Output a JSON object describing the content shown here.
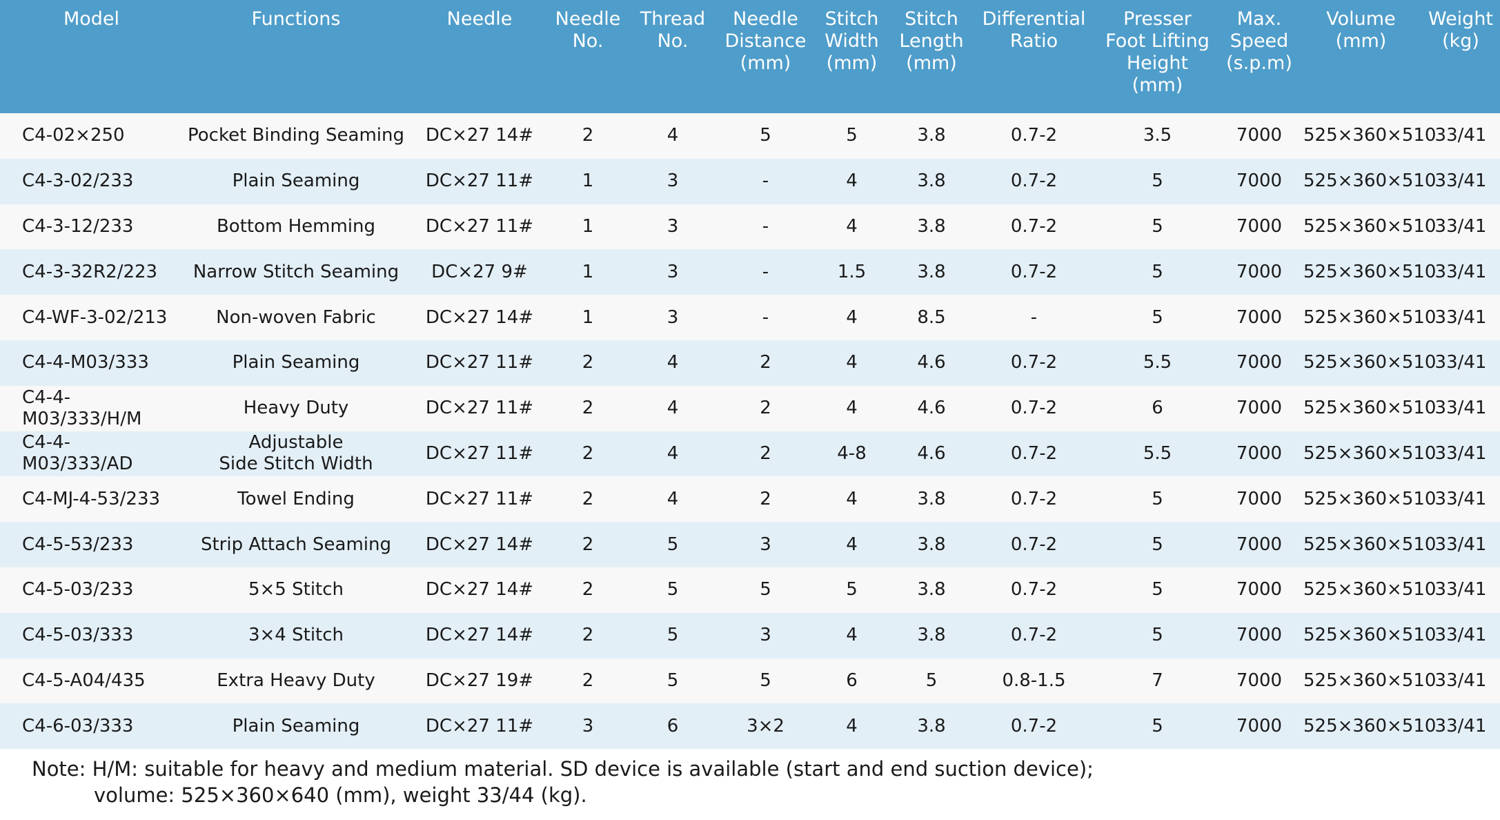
{
  "table": {
    "headers": [
      "Model",
      "Functions",
      "Needle",
      "Needle\nNo.",
      "Thread\nNo.",
      "Needle\nDistance\n(mm)",
      "Stitch\nWidth\n(mm)",
      "Stitch\nLength\n(mm)",
      "Differential\nRatio",
      "Presser\nFoot Lifting\nHeight\n(mm)",
      "Max.\nSpeed\n(s.p.m)",
      "Volume\n(mm)",
      "Weight\n(kg)"
    ],
    "rows": [
      [
        "C4-02×250",
        "Pocket Binding Seaming",
        "DC×27 14#",
        "2",
        "4",
        "5",
        "5",
        "3.8",
        "0.7-2",
        "3.5",
        "7000",
        "525×360×510",
        "33/41"
      ],
      [
        "C4-3-02/233",
        "Plain Seaming",
        "DC×27 11#",
        "1",
        "3",
        "-",
        "4",
        "3.8",
        "0.7-2",
        "5",
        "7000",
        "525×360×510",
        "33/41"
      ],
      [
        "C4-3-12/233",
        "Bottom Hemming",
        "DC×27 11#",
        "1",
        "3",
        "-",
        "4",
        "3.8",
        "0.7-2",
        "5",
        "7000",
        "525×360×510",
        "33/41"
      ],
      [
        "C4-3-32R2/223",
        "Narrow Stitch Seaming",
        "DC×27 9#",
        "1",
        "3",
        "-",
        "1.5",
        "3.8",
        "0.7-2",
        "5",
        "7000",
        "525×360×510",
        "33/41"
      ],
      [
        "C4-WF-3-02/213",
        "Non-woven Fabric",
        "DC×27 14#",
        "1",
        "3",
        "-",
        "4",
        "8.5",
        "-",
        "5",
        "7000",
        "525×360×510",
        "33/41"
      ],
      [
        "C4-4-M03/333",
        "Plain Seaming",
        "DC×27 11#",
        "2",
        "4",
        "2",
        "4",
        "4.6",
        "0.7-2",
        "5.5",
        "7000",
        "525×360×510",
        "33/41"
      ],
      [
        "C4-4-M03/333/H/M",
        "Heavy Duty",
        "DC×27 11#",
        "2",
        "4",
        "2",
        "4",
        "4.6",
        "0.7-2",
        "6",
        "7000",
        "525×360×510",
        "33/41"
      ],
      [
        "C4-4-M03/333/AD",
        "Adjustable\nSide Stitch Width",
        "DC×27 11#",
        "2",
        "4",
        "2",
        "4-8",
        "4.6",
        "0.7-2",
        "5.5",
        "7000",
        "525×360×510",
        "33/41"
      ],
      [
        "C4-MJ-4-53/233",
        "Towel Ending",
        "DC×27 11#",
        "2",
        "4",
        "2",
        "4",
        "3.8",
        "0.7-2",
        "5",
        "7000",
        "525×360×510",
        "33/41"
      ],
      [
        "C4-5-53/233",
        "Strip Attach Seaming",
        "DC×27 14#",
        "2",
        "5",
        "3",
        "4",
        "3.8",
        "0.7-2",
        "5",
        "7000",
        "525×360×510",
        "33/41"
      ],
      [
        "C4-5-03/233",
        "5×5 Stitch",
        "DC×27 14#",
        "2",
        "5",
        "5",
        "5",
        "3.8",
        "0.7-2",
        "5",
        "7000",
        "525×360×510",
        "33/41"
      ],
      [
        "C4-5-03/333",
        "3×4 Stitch",
        "DC×27 14#",
        "2",
        "5",
        "3",
        "4",
        "3.8",
        "0.7-2",
        "5",
        "7000",
        "525×360×510",
        "33/41"
      ],
      [
        "C4-5-A04/435",
        "Extra Heavy Duty",
        "DC×27 19#",
        "2",
        "5",
        "5",
        "6",
        "5",
        "0.8-1.5",
        "7",
        "7000",
        "525×360×510",
        "33/41"
      ],
      [
        "C4-6-03/333",
        "Plain Seaming",
        "DC×27 11#",
        "3",
        "6",
        "3×2",
        "4",
        "3.8",
        "0.7-2",
        "5",
        "7000",
        "525×360×510",
        "33/41"
      ]
    ]
  },
  "note": {
    "line1": "Note: H/M: suitable for heavy and medium material. SD device is available (start and end suction device);",
    "line2": "volume: 525×360×640 (mm), weight 33/44 (kg)."
  },
  "colors": {
    "header_bg": "#4f9dca",
    "row_light": "#f8f8f8",
    "row_blue": "#e3eff7"
  }
}
